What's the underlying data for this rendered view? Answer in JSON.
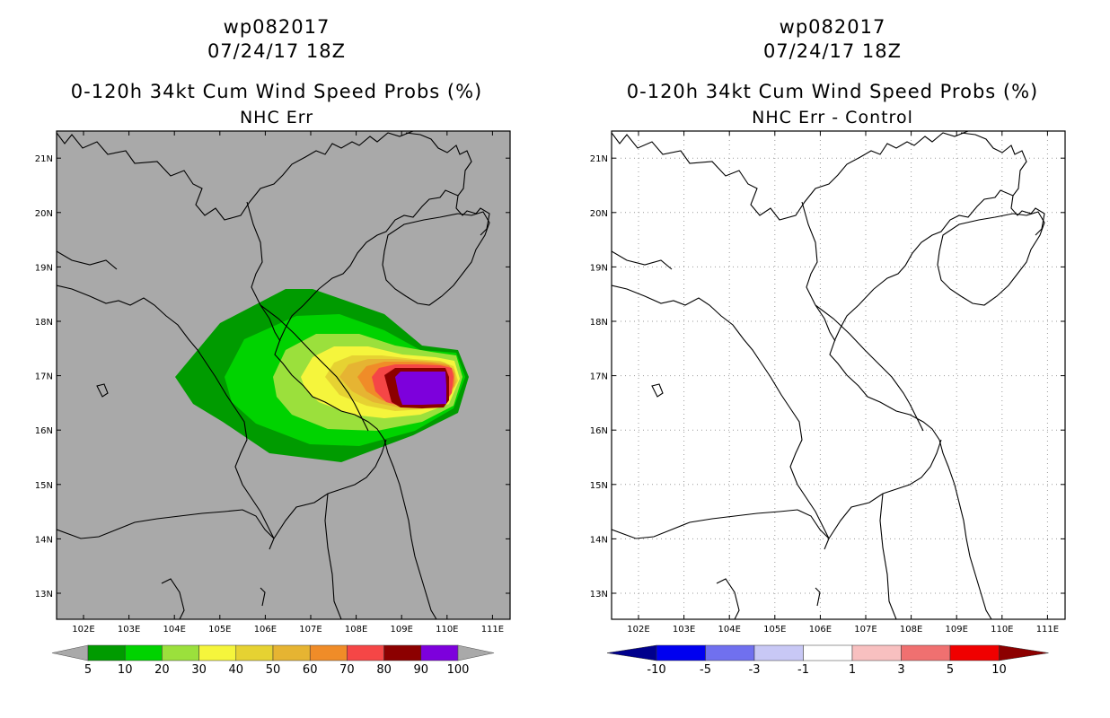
{
  "left_panel": {
    "storm_id": "wp082017",
    "date_time": "07/24/17 18Z",
    "product": "0-120h 34kt Cum Wind Speed Probs (%)",
    "subtitle": "NHC Err",
    "legend_labels": [
      "5",
      "10",
      "20",
      "30",
      "40",
      "50",
      "60",
      "70",
      "80",
      "90",
      "100"
    ],
    "legend_colors": [
      "#009b00",
      "#00d300",
      "#9be03c",
      "#f5f53c",
      "#e6d232",
      "#e6b432",
      "#f08c28",
      "#f54646",
      "#8c0000",
      "#7d00dc"
    ]
  },
  "right_panel": {
    "storm_id": "wp082017",
    "date_time": "07/24/17 18Z",
    "product": "0-120h 34kt Cum Wind Speed Probs (%)",
    "subtitle": "NHC Err - Control",
    "legend_labels": [
      "-10",
      "-5",
      "-3",
      "-1",
      "1",
      "3",
      "5",
      "10"
    ],
    "legend_colors": [
      "#00008c",
      "#0000f0",
      "#7070ef",
      "#c8c8f5",
      "#ffffff",
      "#f8c0c0",
      "#f07070",
      "#f00000",
      "#8c0000"
    ]
  },
  "axes": {
    "lon_labels": [
      "102E",
      "103E",
      "104E",
      "105E",
      "106E",
      "107E",
      "108E",
      "109E",
      "110E",
      "111E"
    ],
    "lat_labels": [
      "13N",
      "14N",
      "15N",
      "16N",
      "17N",
      "18N",
      "19N",
      "20N",
      "21N"
    ]
  },
  "colors": {
    "land_sea_background": "#a9a9a9",
    "grid_dots": "#9a9a9a"
  }
}
